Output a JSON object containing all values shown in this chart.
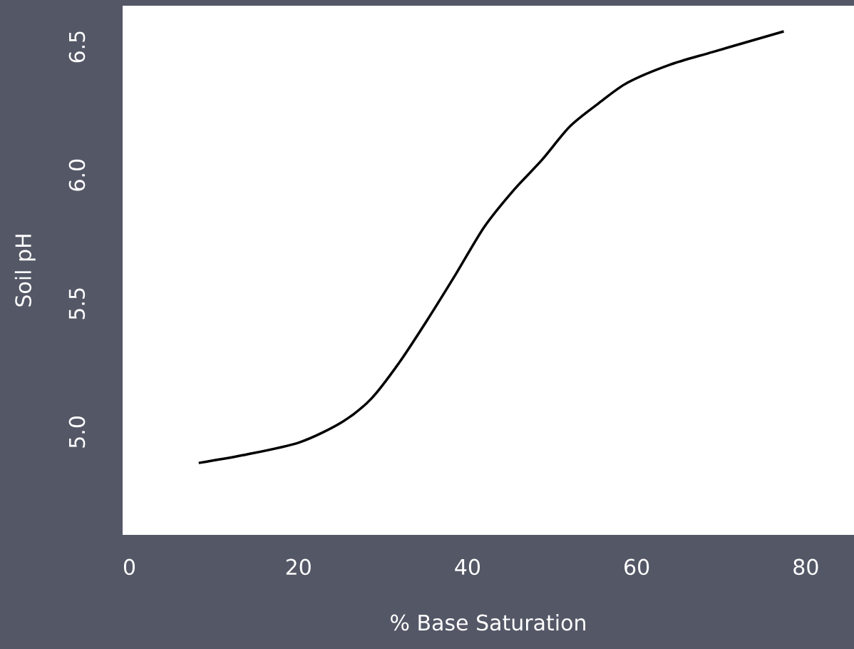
{
  "chart_data": {
    "type": "line",
    "xlabel": "% Base Saturation",
    "ylabel": "Soil pH",
    "x": [
      8.2,
      13.4,
      20.1,
      25.2,
      28.6,
      31.9,
      35.3,
      38.7,
      42.0,
      45.4,
      48.8,
      52.1,
      55.5,
      58.9,
      63.9,
      69.0,
      77.4
    ],
    "series": [
      {
        "color": "#000000",
        "values": [
          4.88,
          4.91,
          4.96,
          5.04,
          5.13,
          5.27,
          5.44,
          5.62,
          5.8,
          5.94,
          6.06,
          6.19,
          6.28,
          6.36,
          6.43,
          6.48,
          6.56
        ]
      }
    ],
    "xlim": [
      -0.8,
      85.7
    ],
    "ylim": [
      4.6,
      6.66
    ],
    "xticks": [
      0,
      20,
      40,
      60,
      80
    ],
    "yticks": [
      {
        "value": 5,
        "label": "5.0"
      },
      {
        "value": 5.5,
        "label": "5.5"
      },
      {
        "value": 6,
        "label": "6.0"
      },
      {
        "value": 6.5,
        "label": "6.5"
      }
    ]
  }
}
